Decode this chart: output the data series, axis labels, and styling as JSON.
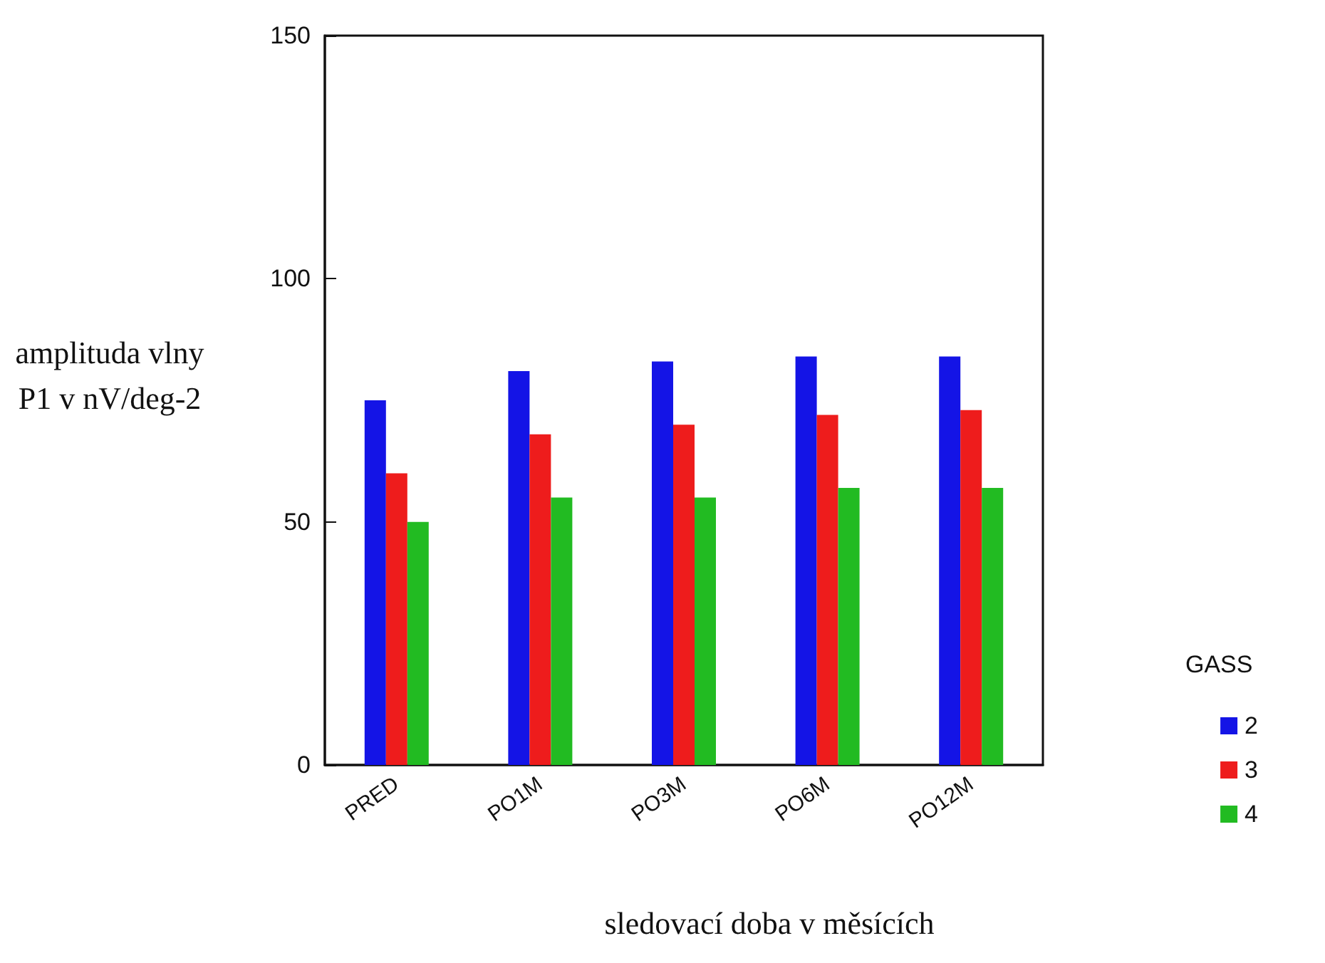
{
  "chart_data": {
    "type": "bar",
    "xlabel": "sledovací doba v měsících",
    "ylabel": "amplituda vlny P1 v nV/deg-2",
    "legend_title": "GASS",
    "categories": [
      "PRED",
      "PO1M",
      "PO3M",
      "PO6M",
      "PO12M"
    ],
    "series": [
      {
        "name": "2",
        "color": "#1414e6",
        "values": [
          75,
          81,
          83,
          84,
          84
        ]
      },
      {
        "name": "3",
        "color": "#ee1c1c",
        "values": [
          60,
          68,
          70,
          72,
          73
        ]
      },
      {
        "name": "4",
        "color": "#22bb22",
        "values": [
          50,
          55,
          55,
          57,
          57
        ]
      }
    ],
    "ylim": [
      0,
      150
    ],
    "yticks": [
      0,
      50,
      100,
      150
    ],
    "grid": false,
    "legend": "right"
  }
}
